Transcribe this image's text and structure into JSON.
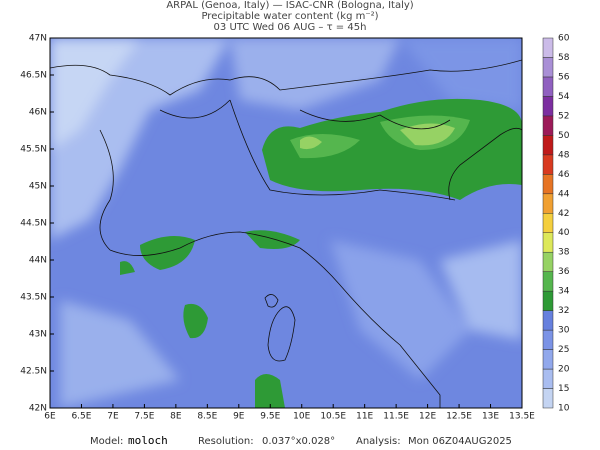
{
  "header": {
    "line1": "ARPAL (Genoa, Italy)  —  ISAC-CNR (Bologna, Italy)",
    "line2": "Precipitable water content (kg m⁻²)",
    "line3": "03 UTC Wed 06 AUG  –  τ = 45h"
  },
  "map": {
    "x_labels": [
      "6E",
      "6.5E",
      "7E",
      "7.5E",
      "8E",
      "8.5E",
      "9E",
      "9.5E",
      "10E",
      "10.5E",
      "11E",
      "11.5E",
      "12E",
      "12.5E",
      "13E",
      "13.5E"
    ],
    "y_labels": [
      "47N",
      "46.5N",
      "46N",
      "45.5N",
      "45N",
      "44.5N",
      "44N",
      "43.5N",
      "43N",
      "42.5N",
      "42N"
    ]
  },
  "colorbar": {
    "labels": [
      "10",
      "15",
      "20",
      "25",
      "30",
      "32",
      "34",
      "36",
      "38",
      "40",
      "42",
      "44",
      "46",
      "48",
      "50",
      "52",
      "54",
      "56",
      "58",
      "60"
    ],
    "colors": [
      "#c4d4f2",
      "#a9bdf0",
      "#91a8ec",
      "#7b93e6",
      "#6680de",
      "#2e9a36",
      "#55b64e",
      "#96d264",
      "#dde85a",
      "#f4cf3e",
      "#f0a032",
      "#e67424",
      "#d83a20",
      "#bf1a1a",
      "#9c1a58",
      "#7c2ea0",
      "#9060c0",
      "#a98fd6",
      "#cbbbe8"
    ]
  },
  "footer": {
    "model_label": "Model:",
    "model": "moloch",
    "resolution_label": "Resolution:",
    "resolution": "0.037°x0.028°",
    "analysis_label": "Analysis:",
    "analysis": "Mon 06Z04AUG2025"
  }
}
